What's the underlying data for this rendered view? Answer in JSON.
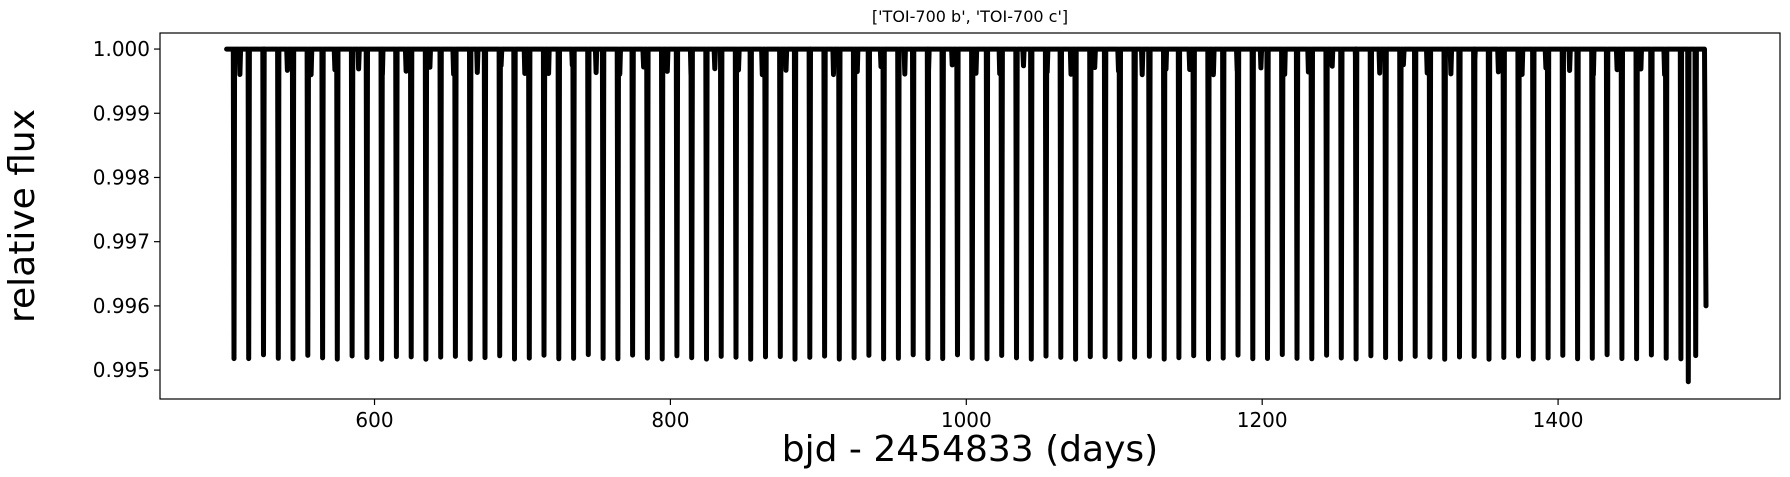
{
  "chart_data": {
    "type": "line",
    "title": "['TOI-700 b', 'TOI-700 c']",
    "xlabel": "bjd - 2454833 (days)",
    "ylabel": "relative flux",
    "xlim": [
      455,
      1550
    ],
    "ylim": [
      0.99455,
      1.00025
    ],
    "x_ticks": [
      {
        "value": 600,
        "label": "600"
      },
      {
        "value": 800,
        "label": "800"
      },
      {
        "value": 1000,
        "label": "1000"
      },
      {
        "value": 1200,
        "label": "1200"
      },
      {
        "value": 1400,
        "label": "1400"
      }
    ],
    "y_ticks": [
      {
        "value": 0.995,
        "label": "0.995"
      },
      {
        "value": 0.996,
        "label": "0.996"
      },
      {
        "value": 0.997,
        "label": "0.997"
      },
      {
        "value": 0.998,
        "label": "0.998"
      },
      {
        "value": 0.999,
        "label": "0.999"
      },
      {
        "value": 1.0,
        "label": "1.000"
      }
    ],
    "grid": false,
    "series": [
      {
        "color": "#000000",
        "x_start": 500,
        "x_end": 1500,
        "baseline": 1.0,
        "end_value": 0.996,
        "transits": [
          {
            "planet": "b",
            "period": 9.98,
            "t0": 505.0,
            "depth": 0.00483
          },
          {
            "planet": "c",
            "period": 16.05,
            "t0": 509.0,
            "depth": 0.0004
          }
        ],
        "min_value": 0.99482,
        "min_at": 1490
      }
    ]
  }
}
